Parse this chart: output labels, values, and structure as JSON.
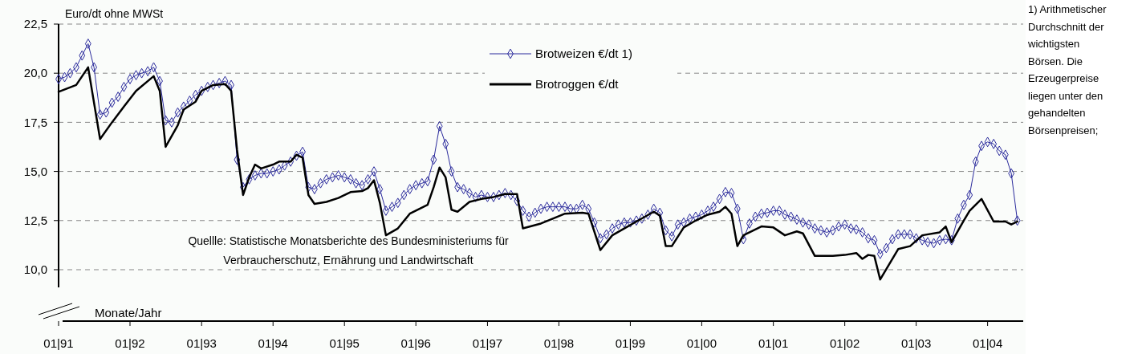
{
  "chart_data": {
    "type": "line",
    "ylabel": "Euro/dt  ohne MWSt",
    "xlabel": "Monate/Jahr",
    "annotations": [
      "Quellle: Statistische Monatsberichte des Bundesministeriums für Verbraucherschutz, Ernährung und Landwirtschaft",
      "1) Arithmetischer Durchschnitt der wichtigsten Börsen. Die Erzeugerpreise liegen unter den gehandelten Börsenpreisen;"
    ],
    "xlim": [
      "1991-01",
      "2004-07"
    ],
    "xticks": [
      {
        "value": "1991-01",
        "label": "01|91"
      },
      {
        "value": "1992-01",
        "label": "01|92"
      },
      {
        "value": "1993-01",
        "label": "01|93"
      },
      {
        "value": "1994-01",
        "label": "01|94"
      },
      {
        "value": "1995-01",
        "label": "01|95"
      },
      {
        "value": "1996-01",
        "label": "01|96"
      },
      {
        "value": "1997-01",
        "label": "01|97"
      },
      {
        "value": "1998-01",
        "label": "01|98"
      },
      {
        "value": "1999-01",
        "label": "01|99"
      },
      {
        "value": "2000-01",
        "label": "01|00"
      },
      {
        "value": "2001-01",
        "label": "01|01"
      },
      {
        "value": "2002-01",
        "label": "01|02"
      },
      {
        "value": "2003-01",
        "label": "01|03"
      },
      {
        "value": "2004-01",
        "label": "01|04"
      }
    ],
    "ylim": [
      9.1,
      22.5
    ],
    "yticks": [
      {
        "value": 10,
        "label": "10,0"
      },
      {
        "value": 12.5,
        "label": "12,5"
      },
      {
        "value": 15,
        "label": "15,0"
      },
      {
        "value": 17.5,
        "label": "17,5"
      },
      {
        "value": 20,
        "label": "20,0"
      },
      {
        "value": 22.5,
        "label": "22,5"
      }
    ],
    "grid": "y",
    "legend": "top",
    "series": [
      {
        "name": "Brotweizen €/dt 1)",
        "color": "#2a2a9c",
        "marker": "diamond",
        "x": [
          "1991-01",
          "1991-02",
          "1991-03",
          "1991-04",
          "1991-05",
          "1991-06",
          "1991-07",
          "1991-08",
          "1991-09",
          "1991-10",
          "1991-11",
          "1991-12",
          "1992-01",
          "1992-02",
          "1992-03",
          "1992-04",
          "1992-05",
          "1992-06",
          "1992-07",
          "1992-08",
          "1992-09",
          "1992-10",
          "1992-11",
          "1992-12",
          "1993-01",
          "1993-02",
          "1993-03",
          "1993-04",
          "1993-05",
          "1993-06",
          "1993-07",
          "1993-08",
          "1993-09",
          "1993-10",
          "1993-11",
          "1993-12",
          "1994-01",
          "1994-02",
          "1994-03",
          "1994-04",
          "1994-05",
          "1994-06",
          "1994-07",
          "1994-08",
          "1994-09",
          "1994-10",
          "1994-11",
          "1994-12",
          "1995-01",
          "1995-02",
          "1995-03",
          "1995-04",
          "1995-05",
          "1995-06",
          "1995-07",
          "1995-08",
          "1995-09",
          "1995-10",
          "1995-11",
          "1995-12",
          "1996-01",
          "1996-02",
          "1996-03",
          "1996-04",
          "1996-05",
          "1996-06",
          "1996-07",
          "1996-08",
          "1996-09",
          "1996-10",
          "1996-11",
          "1996-12",
          "1997-01",
          "1997-02",
          "1997-03",
          "1997-04",
          "1997-05",
          "1997-06",
          "1997-07",
          "1997-08",
          "1997-09",
          "1997-10",
          "1997-11",
          "1997-12",
          "1998-01",
          "1998-02",
          "1998-03",
          "1998-04",
          "1998-05",
          "1998-06",
          "1998-07",
          "1998-08",
          "1998-09",
          "1998-10",
          "1998-11",
          "1998-12",
          "1999-01",
          "1999-02",
          "1999-03",
          "1999-04",
          "1999-05",
          "1999-06",
          "1999-07",
          "1999-08",
          "1999-09",
          "1999-10",
          "1999-11",
          "1999-12",
          "2000-01",
          "2000-02",
          "2000-03",
          "2000-04",
          "2000-05",
          "2000-06",
          "2000-07",
          "2000-08",
          "2000-09",
          "2000-10",
          "2000-11",
          "2000-12",
          "2001-01",
          "2001-02",
          "2001-03",
          "2001-04",
          "2001-05",
          "2001-06",
          "2001-07",
          "2001-08",
          "2001-09",
          "2001-10",
          "2001-11",
          "2001-12",
          "2002-01",
          "2002-02",
          "2002-03",
          "2002-04",
          "2002-05",
          "2002-06",
          "2002-07",
          "2002-08",
          "2002-09",
          "2002-10",
          "2002-11",
          "2002-12",
          "2003-01",
          "2003-02",
          "2003-03",
          "2003-04",
          "2003-05",
          "2003-06",
          "2003-07",
          "2003-08",
          "2003-09",
          "2003-10",
          "2003-11",
          "2003-12",
          "2004-01",
          "2004-02",
          "2004-03",
          "2004-04",
          "2004-05",
          "2004-06"
        ],
        "values": [
          19.7,
          19.8,
          20.0,
          20.3,
          20.9,
          21.5,
          20.3,
          17.9,
          18.0,
          18.5,
          18.8,
          19.3,
          19.7,
          19.9,
          20.0,
          20.1,
          20.3,
          19.6,
          17.6,
          17.5,
          18.0,
          18.3,
          18.6,
          18.9,
          19.1,
          19.3,
          19.4,
          19.5,
          19.6,
          19.4,
          15.6,
          14.2,
          14.6,
          14.8,
          14.9,
          14.9,
          15.0,
          15.1,
          15.3,
          15.5,
          15.8,
          16.0,
          14.2,
          14.1,
          14.4,
          14.6,
          14.7,
          14.8,
          14.7,
          14.6,
          14.4,
          14.3,
          14.6,
          15.0,
          14.1,
          13.0,
          13.2,
          13.4,
          13.8,
          14.1,
          14.3,
          14.4,
          14.5,
          15.6,
          17.3,
          16.4,
          15.0,
          14.2,
          14.1,
          13.9,
          13.7,
          13.8,
          13.7,
          13.7,
          13.8,
          13.9,
          13.8,
          13.5,
          13.0,
          12.7,
          12.9,
          13.1,
          13.2,
          13.2,
          13.2,
          13.2,
          13.1,
          13.1,
          13.3,
          13.1,
          12.4,
          11.6,
          11.8,
          12.1,
          12.3,
          12.4,
          12.4,
          12.5,
          12.6,
          12.8,
          13.1,
          12.9,
          12.0,
          11.7,
          12.3,
          12.4,
          12.6,
          12.7,
          12.8,
          13.0,
          13.2,
          13.6,
          13.95,
          13.9,
          13.1,
          11.55,
          12.35,
          12.7,
          12.85,
          12.9,
          13.0,
          13.0,
          12.8,
          12.7,
          12.55,
          12.4,
          12.3,
          12.1,
          12.0,
          11.9,
          12.0,
          12.2,
          12.3,
          12.1,
          12.05,
          11.9,
          11.6,
          11.5,
          10.8,
          11.1,
          11.55,
          11.8,
          11.8,
          11.8,
          11.6,
          11.5,
          11.4,
          11.35,
          11.5,
          11.55,
          11.5,
          12.6,
          13.3,
          13.8,
          15.5,
          16.3,
          16.5,
          16.4,
          16.05,
          15.85,
          14.9,
          12.5
        ]
      },
      {
        "name": "Brotroggen €/dt",
        "color": "#000000",
        "marker": "none",
        "x": [
          "1991-01",
          "1991-04",
          "1991-06",
          "1991-08",
          "1991-10",
          "1991-12",
          "1992-02",
          "1992-05",
          "1992-06",
          "1992-07",
          "1992-09",
          "1992-10",
          "1992-12",
          "1993-01",
          "1993-03",
          "1993-05",
          "1993-06",
          "1993-07",
          "1993-08",
          "1993-09",
          "1993-10",
          "1993-11",
          "1994-01",
          "1994-02",
          "1994-04",
          "1994-05",
          "1994-06",
          "1994-07",
          "1994-08",
          "1994-10",
          "1994-12",
          "1995-02",
          "1995-04",
          "1995-05",
          "1995-06",
          "1995-07",
          "1995-08",
          "1995-10",
          "1995-12",
          "1996-03",
          "1996-04",
          "1996-05",
          "1996-06",
          "1996-07",
          "1996-08",
          "1996-10",
          "1996-12",
          "1997-02",
          "1997-04",
          "1997-06",
          "1997-07",
          "1997-10",
          "1997-12",
          "1998-02",
          "1998-05",
          "1998-06",
          "1998-08",
          "1998-10",
          "1998-12",
          "1999-02",
          "1999-05",
          "1999-06",
          "1999-07",
          "1999-08",
          "1999-10",
          "1999-12",
          "2000-02",
          "2000-04",
          "2000-05",
          "2000-06",
          "2000-07",
          "2000-08",
          "2000-11",
          "2001-01",
          "2001-03",
          "2001-05",
          "2001-06",
          "2001-08",
          "2001-11",
          "2002-01",
          "2002-03",
          "2002-04",
          "2002-05",
          "2002-06",
          "2002-07",
          "2002-10",
          "2002-12",
          "2003-02",
          "2003-05",
          "2003-06",
          "2003-07",
          "2003-09",
          "2003-10",
          "2003-12",
          "2004-02",
          "2004-04",
          "2004-05",
          "2004-06"
        ],
        "values": [
          19.05,
          19.4,
          20.3,
          16.65,
          17.5,
          18.3,
          19.1,
          19.85,
          19.1,
          16.25,
          17.35,
          18.15,
          18.55,
          19.1,
          19.4,
          19.45,
          19.1,
          16.1,
          13.8,
          14.7,
          15.35,
          15.15,
          15.35,
          15.5,
          15.5,
          15.85,
          15.7,
          13.8,
          13.35,
          13.45,
          13.65,
          13.95,
          14.0,
          14.15,
          14.55,
          13.4,
          11.75,
          12.1,
          12.85,
          13.3,
          14.2,
          15.2,
          14.7,
          13.05,
          12.95,
          13.45,
          13.6,
          13.7,
          13.85,
          13.85,
          12.1,
          12.35,
          12.6,
          12.85,
          12.9,
          12.85,
          11.0,
          11.75,
          12.1,
          12.45,
          12.95,
          12.75,
          11.2,
          11.2,
          12.15,
          12.5,
          12.8,
          12.95,
          13.2,
          12.85,
          11.2,
          11.75,
          12.2,
          12.15,
          11.75,
          11.95,
          11.85,
          10.7,
          10.7,
          10.75,
          10.85,
          10.55,
          10.75,
          10.7,
          9.5,
          11.05,
          11.2,
          11.75,
          11.9,
          12.2,
          11.4,
          12.5,
          13.0,
          13.6,
          12.45,
          12.45,
          12.3,
          12.45
        ]
      }
    ]
  }
}
